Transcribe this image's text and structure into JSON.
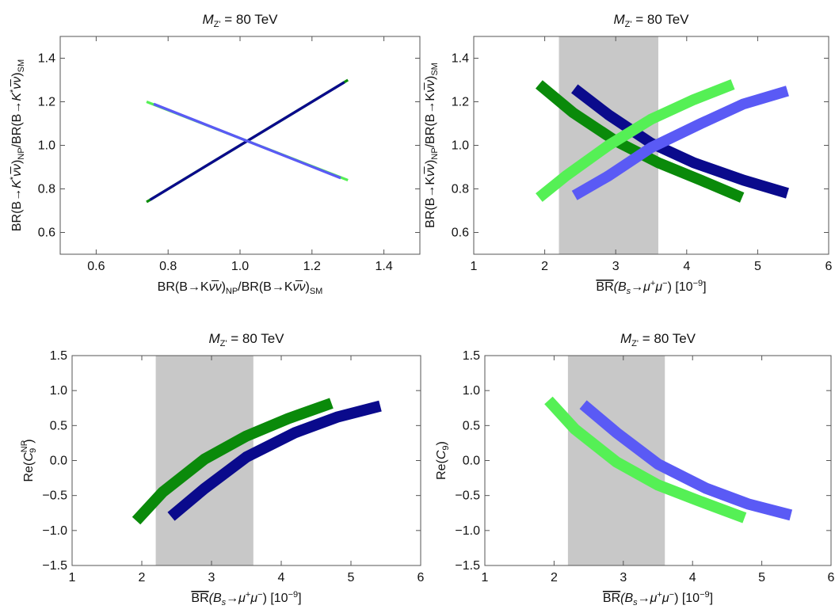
{
  "colors": {
    "dark_green": "#0a8a0a",
    "light_green": "#55f055",
    "dark_blue": "#0a0a8c",
    "light_blue": "#5a5af5",
    "band": "#c8c8c8"
  },
  "chart_data": [
    {
      "type": "line",
      "title_main": "M",
      "title_sub": "Z'",
      "title_rest": " = 80 TeV",
      "xlabel": "BR(B→Kν̅ν)NP/BR(B→Kν̅ν)SM",
      "xlabel_parts": {
        "a": "BR(B→K",
        "nu": "ν̅ν",
        "b": ")",
        "sub1": "NP",
        "c": "/BR(B→K",
        "d": ")",
        "sub2": "SM"
      },
      "ylabel_parts": {
        "a": "BR(B→",
        "k": "K",
        "star": "*",
        "nu": "ν̅ν",
        "b": ")",
        "sub1": "NP",
        "c": "/BR(B→",
        "d": ")",
        "sub2": "SM"
      },
      "xlim": [
        0.5,
        1.5
      ],
      "ylim": [
        0.5,
        1.5
      ],
      "xticks": [
        "0.6",
        "0.8",
        "1.0",
        "1.2",
        "1.4"
      ],
      "xtick_values": [
        0.6,
        0.8,
        1.0,
        1.2,
        1.4
      ],
      "yticks": [
        "0.6",
        "0.8",
        "1.0",
        "1.2",
        "1.4"
      ],
      "ytick_values": [
        0.6,
        0.8,
        1.0,
        1.2,
        1.4
      ],
      "shaded_band": null,
      "series": [
        {
          "color": "dark_green",
          "width": 0.012,
          "points": [
            [
              0.74,
              0.74
            ],
            [
              1.3,
              1.3
            ]
          ]
        },
        {
          "color": "dark_blue",
          "width": 0.012,
          "points": [
            [
              0.75,
              0.75
            ],
            [
              1.29,
              1.29
            ]
          ]
        },
        {
          "color": "light_green",
          "width": 0.012,
          "points": [
            [
              0.74,
              1.2
            ],
            [
              1.3,
              0.84
            ]
          ]
        },
        {
          "color": "light_blue",
          "width": 0.012,
          "points": [
            [
              0.76,
              1.19
            ],
            [
              1.28,
              0.85
            ]
          ]
        }
      ]
    },
    {
      "type": "line",
      "title_main": "M",
      "title_sub": "Z'",
      "title_rest": " = 80 TeV",
      "xlabel_br": "BR",
      "xlabel_rest": "(B",
      "xlabel_s": "s",
      "xlabel_mid": "→μ",
      "xlabel_plus": "+",
      "xlabel_mu": "μ",
      "xlabel_minus": "−",
      "xlabel_end": ") [10",
      "xlabel_exp": "−9",
      "xlabel_close": "]",
      "ylabel_parts": {
        "a": "BR(B→K",
        "nu": "ν̅ν",
        "b": ")",
        "sub1": "NP",
        "c": "/BR(B→K",
        "d": ")",
        "sub2": "SM"
      },
      "xlim": [
        1,
        6
      ],
      "ylim": [
        0.5,
        1.5
      ],
      "xticks": [
        "1",
        "2",
        "3",
        "4",
        "5",
        "6"
      ],
      "xtick_values": [
        1,
        2,
        3,
        4,
        5,
        6
      ],
      "yticks": [
        "0.6",
        "0.8",
        "1.0",
        "1.2",
        "1.4"
      ],
      "ytick_values": [
        0.6,
        0.8,
        1.0,
        1.2,
        1.4
      ],
      "shaded_band": [
        2.2,
        3.6
      ],
      "series": [
        {
          "color": "dark_green",
          "width": 0.05,
          "points": [
            [
              1.92,
              1.28
            ],
            [
              2.4,
              1.15
            ],
            [
              3.0,
              1.02
            ],
            [
              3.6,
              0.92
            ],
            [
              4.2,
              0.84
            ],
            [
              4.78,
              0.76
            ]
          ]
        },
        {
          "color": "dark_blue",
          "width": 0.05,
          "points": [
            [
              2.42,
              1.26
            ],
            [
              2.9,
              1.14
            ],
            [
              3.5,
              1.01
            ],
            [
              4.1,
              0.92
            ],
            [
              4.8,
              0.84
            ],
            [
              5.42,
              0.78
            ]
          ]
        },
        {
          "color": "light_green",
          "width": 0.05,
          "points": [
            [
              1.92,
              0.76
            ],
            [
              2.3,
              0.86
            ],
            [
              2.9,
              1.0
            ],
            [
              3.5,
              1.12
            ],
            [
              4.1,
              1.21
            ],
            [
              4.65,
              1.28
            ]
          ]
        },
        {
          "color": "light_blue",
          "width": 0.05,
          "points": [
            [
              2.42,
              0.77
            ],
            [
              2.9,
              0.86
            ],
            [
              3.5,
              0.99
            ],
            [
              4.2,
              1.1
            ],
            [
              4.8,
              1.19
            ],
            [
              5.42,
              1.25
            ]
          ]
        }
      ]
    },
    {
      "type": "line",
      "title_main": "M",
      "title_sub": "Z'",
      "title_rest": " = 80 TeV",
      "xlabel_br": "BR",
      "xlabel_rest": "(B",
      "xlabel_s": "s",
      "xlabel_mid": "→μ",
      "xlabel_plus": "+",
      "xlabel_mu": "μ",
      "xlabel_minus": "−",
      "xlabel_end": ") [10",
      "xlabel_exp": "−9",
      "xlabel_close": "]",
      "ylabel_re": "Re(",
      "ylabel_c": "C",
      "ylabel_sub": "9",
      "ylabel_sup": "NP",
      "ylabel_close": ")",
      "xlim": [
        1,
        6
      ],
      "ylim": [
        -1.5,
        1.5
      ],
      "xticks": [
        "1",
        "2",
        "3",
        "4",
        "5",
        "6"
      ],
      "xtick_values": [
        1,
        2,
        3,
        4,
        5,
        6
      ],
      "yticks": [
        "−1.5",
        "−1.0",
        "−0.5",
        "0.0",
        "0.5",
        "1.0",
        "1.5"
      ],
      "ytick_values": [
        -1.5,
        -1.0,
        -0.5,
        0.0,
        0.5,
        1.0,
        1.5
      ],
      "shaded_band": [
        2.2,
        3.6
      ],
      "series": [
        {
          "color": "dark_green",
          "width": 0.16,
          "points": [
            [
              1.92,
              -0.86
            ],
            [
              2.3,
              -0.45
            ],
            [
              2.9,
              0.02
            ],
            [
              3.5,
              0.35
            ],
            [
              4.1,
              0.6
            ],
            [
              4.72,
              0.82
            ]
          ]
        },
        {
          "color": "dark_blue",
          "width": 0.16,
          "points": [
            [
              2.42,
              -0.8
            ],
            [
              2.9,
              -0.4
            ],
            [
              3.5,
              0.05
            ],
            [
              4.2,
              0.4
            ],
            [
              4.8,
              0.62
            ],
            [
              5.42,
              0.78
            ]
          ]
        }
      ]
    },
    {
      "type": "line",
      "title_main": "M",
      "title_sub": "Z'",
      "title_rest": " = 80 TeV",
      "xlabel_br": "BR",
      "xlabel_rest": "(B",
      "xlabel_s": "s",
      "xlabel_mid": "→μ",
      "xlabel_plus": "+",
      "xlabel_mu": "μ",
      "xlabel_minus": "−",
      "xlabel_end": ") [10",
      "xlabel_exp": "−9",
      "xlabel_close": "]",
      "ylabel_re": "Re(",
      "ylabel_c": "C",
      "ylabel_sub": "9",
      "ylabel_sup": "",
      "ylabel_close": ")",
      "xlim": [
        1,
        6
      ],
      "ylim": [
        -1.5,
        1.5
      ],
      "xticks": [
        "1",
        "2",
        "3",
        "4",
        "5",
        "6"
      ],
      "xtick_values": [
        1,
        2,
        3,
        4,
        5,
        6
      ],
      "yticks": [
        "−1.5",
        "−1.0",
        "−0.5",
        "0.0",
        "0.5",
        "1.0",
        "1.5"
      ],
      "ytick_values": [
        -1.5,
        -1.0,
        -0.5,
        0.0,
        0.5,
        1.0,
        1.5
      ],
      "shaded_band": [
        2.2,
        3.6
      ],
      "series": [
        {
          "color": "light_green",
          "width": 0.16,
          "points": [
            [
              1.92,
              0.86
            ],
            [
              2.3,
              0.45
            ],
            [
              2.9,
              -0.02
            ],
            [
              3.5,
              -0.35
            ],
            [
              4.1,
              -0.58
            ],
            [
              4.75,
              -0.82
            ]
          ]
        },
        {
          "color": "light_blue",
          "width": 0.16,
          "points": [
            [
              2.42,
              0.8
            ],
            [
              2.9,
              0.4
            ],
            [
              3.5,
              -0.05
            ],
            [
              4.2,
              -0.4
            ],
            [
              4.8,
              -0.62
            ],
            [
              5.42,
              -0.78
            ]
          ]
        }
      ]
    }
  ]
}
